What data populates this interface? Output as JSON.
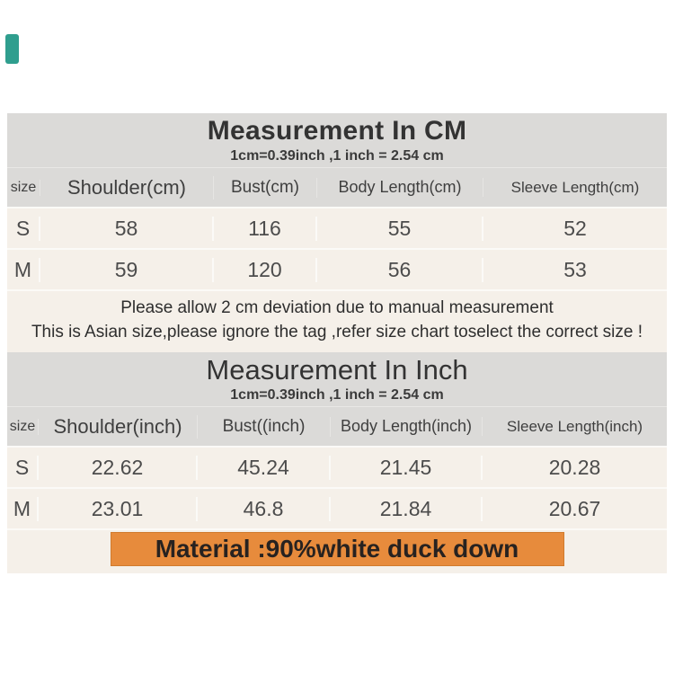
{
  "colors": {
    "band_gray": "#dbdad8",
    "table_cream": "#f5f0e9",
    "material_orange": "#e78b3c",
    "teal_mark": "#2f9e8e",
    "text_dark": "#333333"
  },
  "section_cm": {
    "title": "Measurement In CM",
    "subtitle": "1cm=0.39inch ,1 inch = 2.54 cm",
    "headers": [
      "size",
      "Shoulder(cm)",
      "Bust(cm)",
      "Body Length(cm)",
      "Sleeve Length(cm)"
    ],
    "rows": [
      {
        "size": "S",
        "values": [
          "58",
          "116",
          "55",
          "52"
        ]
      },
      {
        "size": "M",
        "values": [
          "59",
          "120",
          "56",
          "53"
        ]
      }
    ],
    "notes": [
      "Please allow 2 cm deviation due to manual measurement",
      "This is Asian size,please ignore the tag ,refer size chart toselect the correct size !"
    ]
  },
  "section_inch": {
    "title": "Measurement In Inch",
    "subtitle": "1cm=0.39inch ,1 inch = 2.54 cm",
    "headers": [
      "size",
      "Shoulder(inch)",
      "Bust((inch)",
      "Body Length(inch)",
      "Sleeve Length(inch)"
    ],
    "rows": [
      {
        "size": "S",
        "values": [
          "22.62",
          "45.24",
          "21.45",
          "20.28"
        ]
      },
      {
        "size": "M",
        "values": [
          "23.01",
          "46.8",
          "21.84",
          "20.67"
        ]
      }
    ]
  },
  "material": {
    "label": "Material :90%white duck down"
  }
}
